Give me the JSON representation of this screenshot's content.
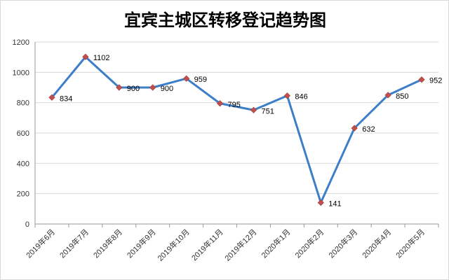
{
  "chart_data": {
    "type": "line",
    "title": "宜宾主城区转移登记趋势图",
    "xlabel": "",
    "ylabel": "",
    "categories": [
      "2019年6月",
      "2019年7月",
      "2019年8月",
      "2019年9月",
      "2019年10月",
      "2019年11月",
      "2019年12月",
      "2020年1月",
      "2020年2月",
      "2020年3月",
      "2020年4月",
      "2020年5月"
    ],
    "series": [
      {
        "values": [
          834,
          1102,
          900,
          900,
          959,
          795,
          751,
          846,
          141,
          632,
          850,
          952
        ]
      }
    ],
    "ylim": [
      0,
      1200
    ],
    "yticks": [
      0,
      200,
      400,
      600,
      800,
      1000,
      1200
    ],
    "grid": true,
    "legend": "none",
    "colors": {
      "line": "#3d7ec9",
      "marker": "#c0504d",
      "grid": "#d9d9d9"
    }
  }
}
